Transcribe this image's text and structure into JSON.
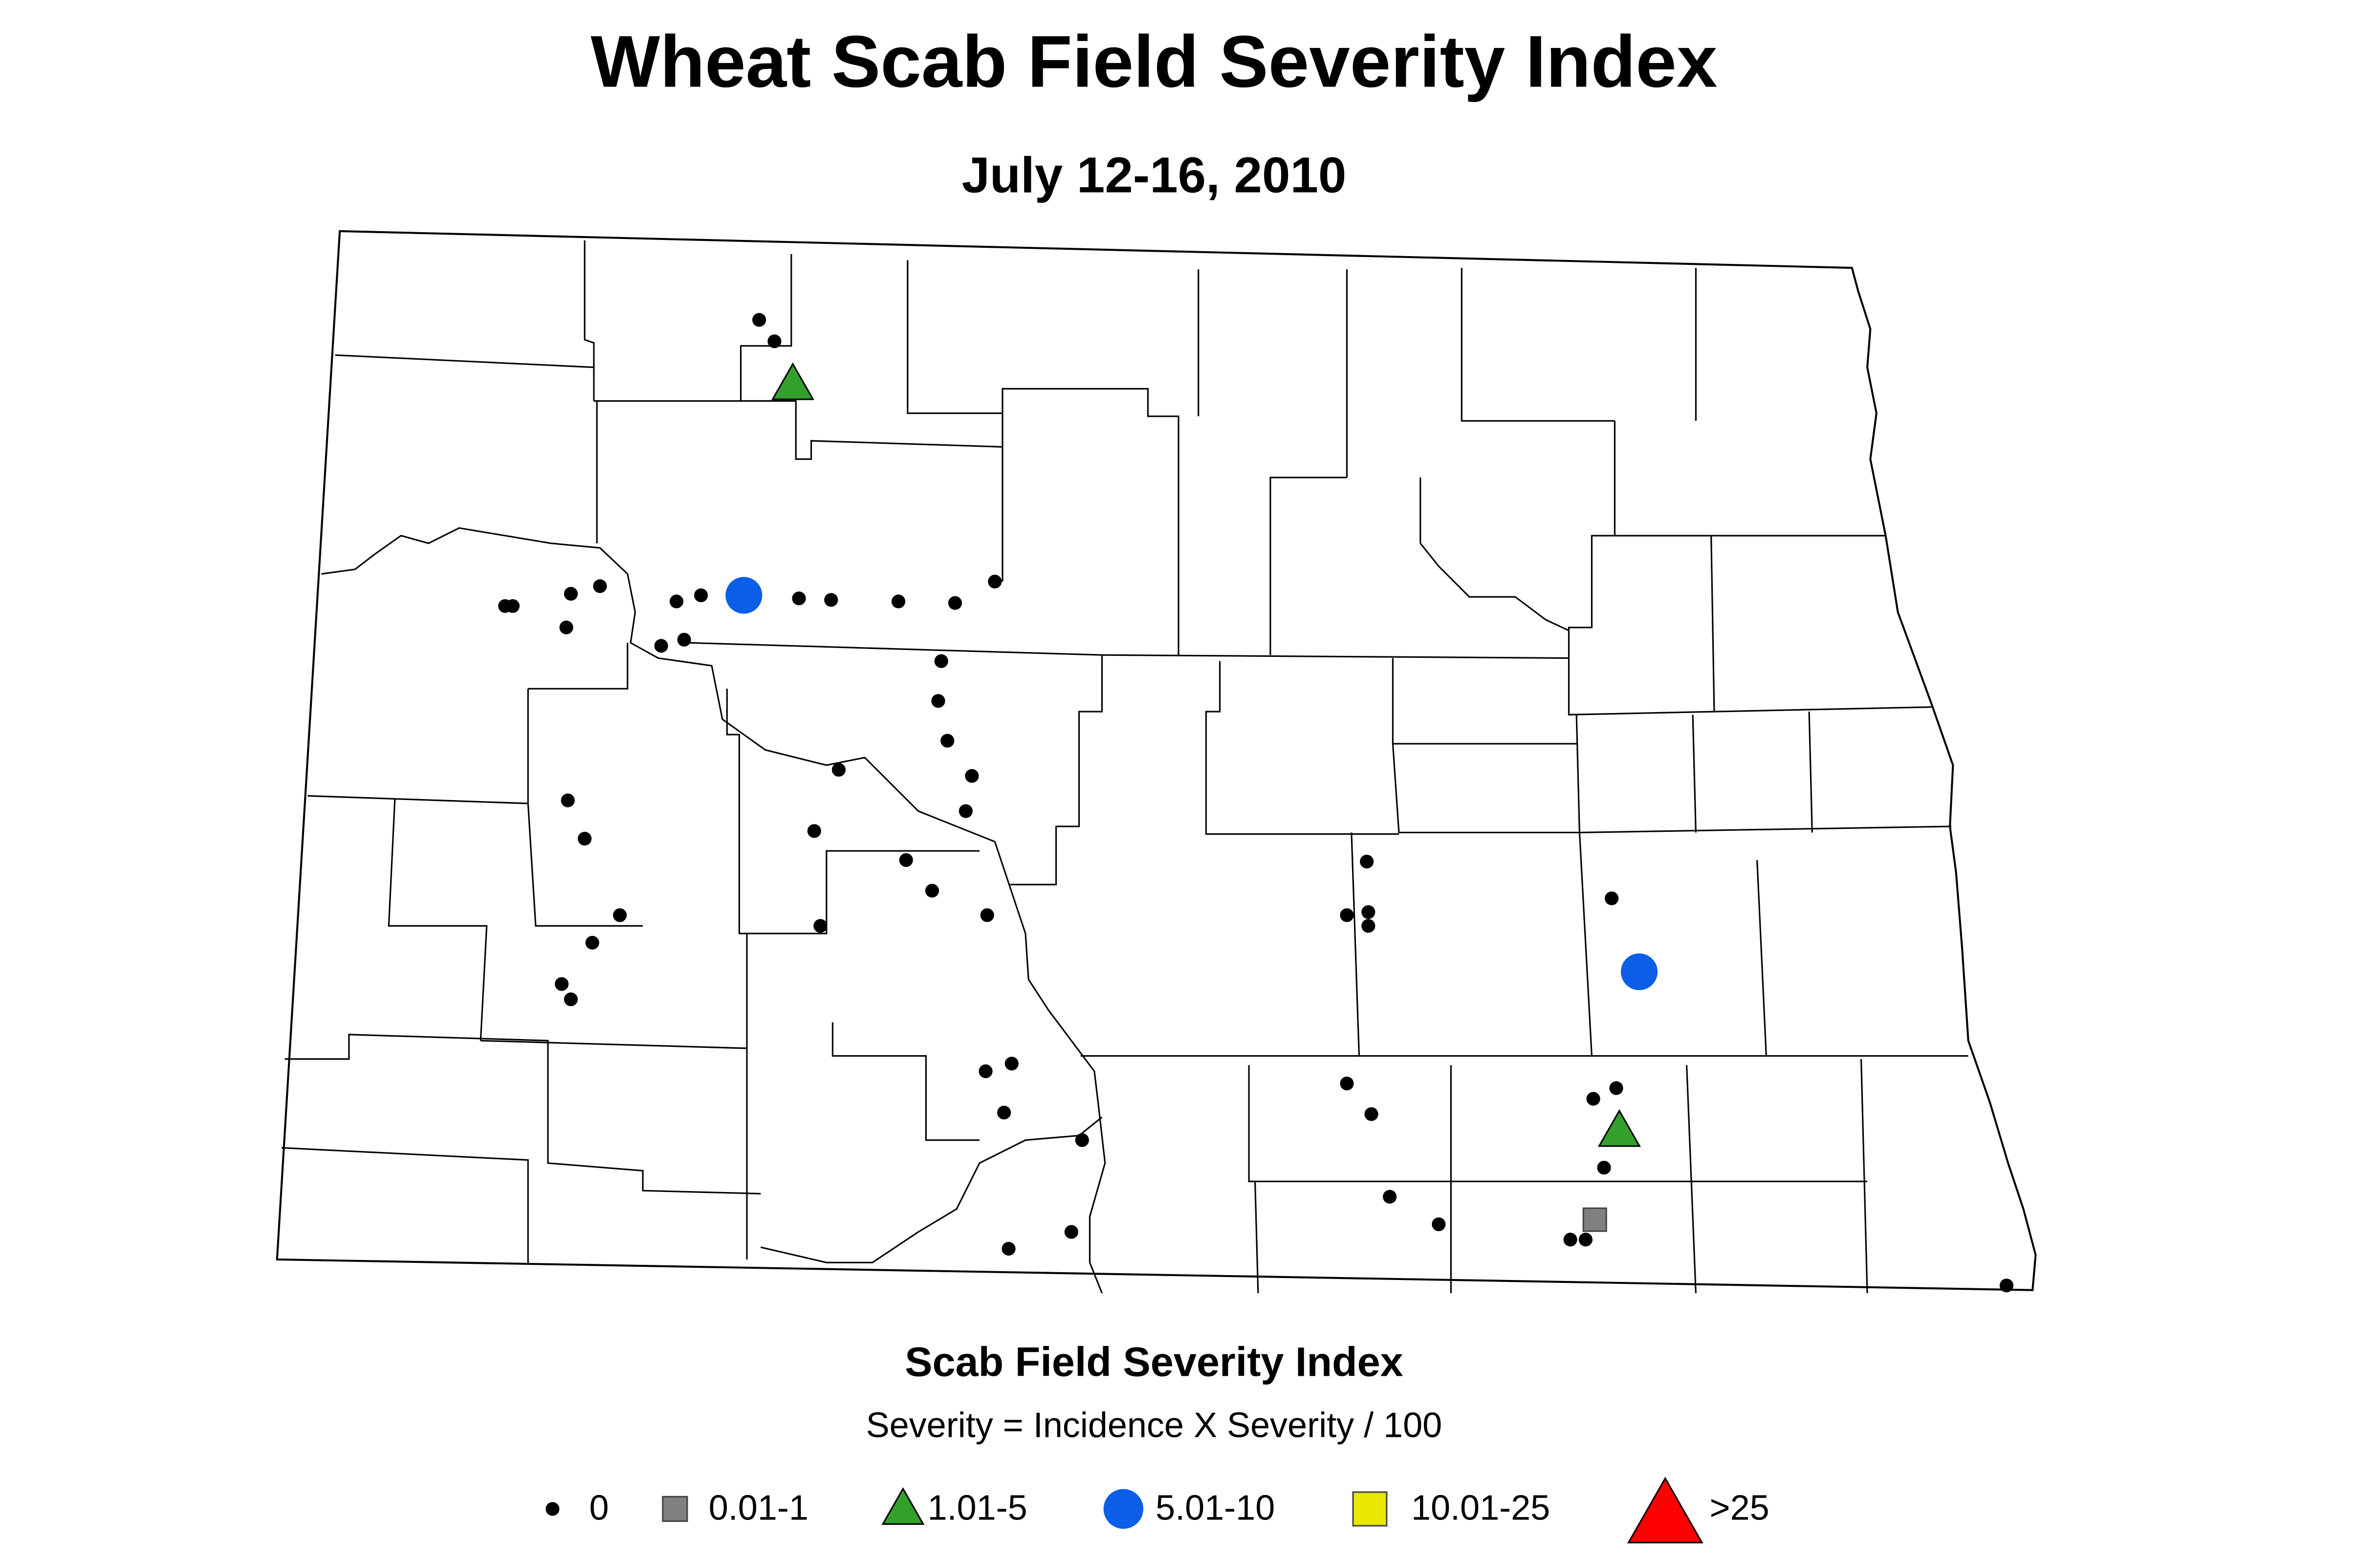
{
  "title": "Wheat Scab Field Severity Index",
  "subtitle": "July 12-16, 2010",
  "legend": {
    "title": "Scab Field Severity Index",
    "subtitle": "Severity = Incidence X Severity / 100",
    "items": [
      {
        "label": "0",
        "color": "#000000"
      },
      {
        "label": "0.01-1",
        "color": "#808080"
      },
      {
        "label": "1.01-5",
        "color": "#33a02c"
      },
      {
        "label": "5.01-10",
        "color": "#0a5ee8"
      },
      {
        "label": "10.01-25",
        "color": "#e8e800"
      },
      {
        "label": ">25",
        "color": "#ff0000"
      }
    ]
  }
}
